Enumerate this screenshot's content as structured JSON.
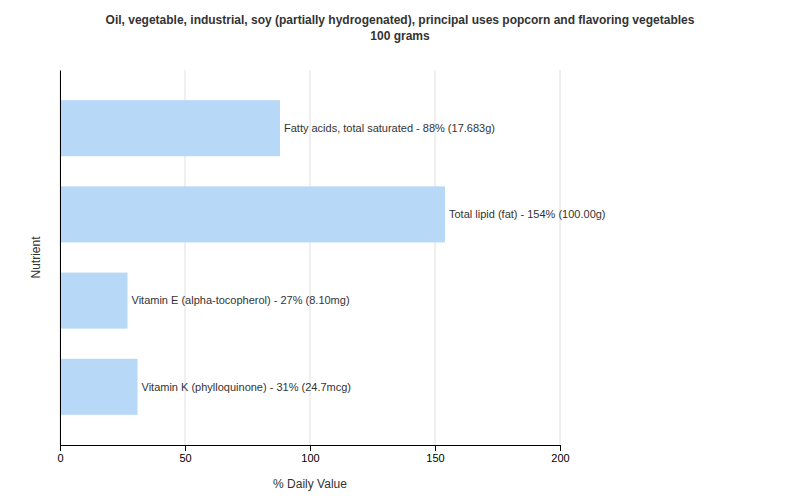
{
  "chart_data": {
    "type": "bar",
    "orientation": "horizontal",
    "title": "Oil, vegetable, industrial, soy (partially hydrogenated), principal uses popcorn and flavoring vegetables\n100 grams",
    "xlabel": "% Daily Value",
    "ylabel": "Nutrient",
    "categories": [
      null,
      null,
      null,
      null
    ],
    "values": [
      31,
      27,
      154,
      88
    ],
    "value_labels": [
      "Vitamin K (phylloquinone) - 31% (24.7mcg)",
      "Vitamin E (alpha-tocopherol) - 27% (8.10mg)",
      "Total lipid (fat) - 154% (100.00g)",
      "Fatty acids, total saturated - 88% (17.683g)"
    ],
    "data_labels": true,
    "color": "#b8d8f8",
    "xlim": [
      0,
      200
    ],
    "xticks": [
      0,
      50,
      100,
      150,
      200
    ],
    "grid": true,
    "tick_labels": "x"
  }
}
